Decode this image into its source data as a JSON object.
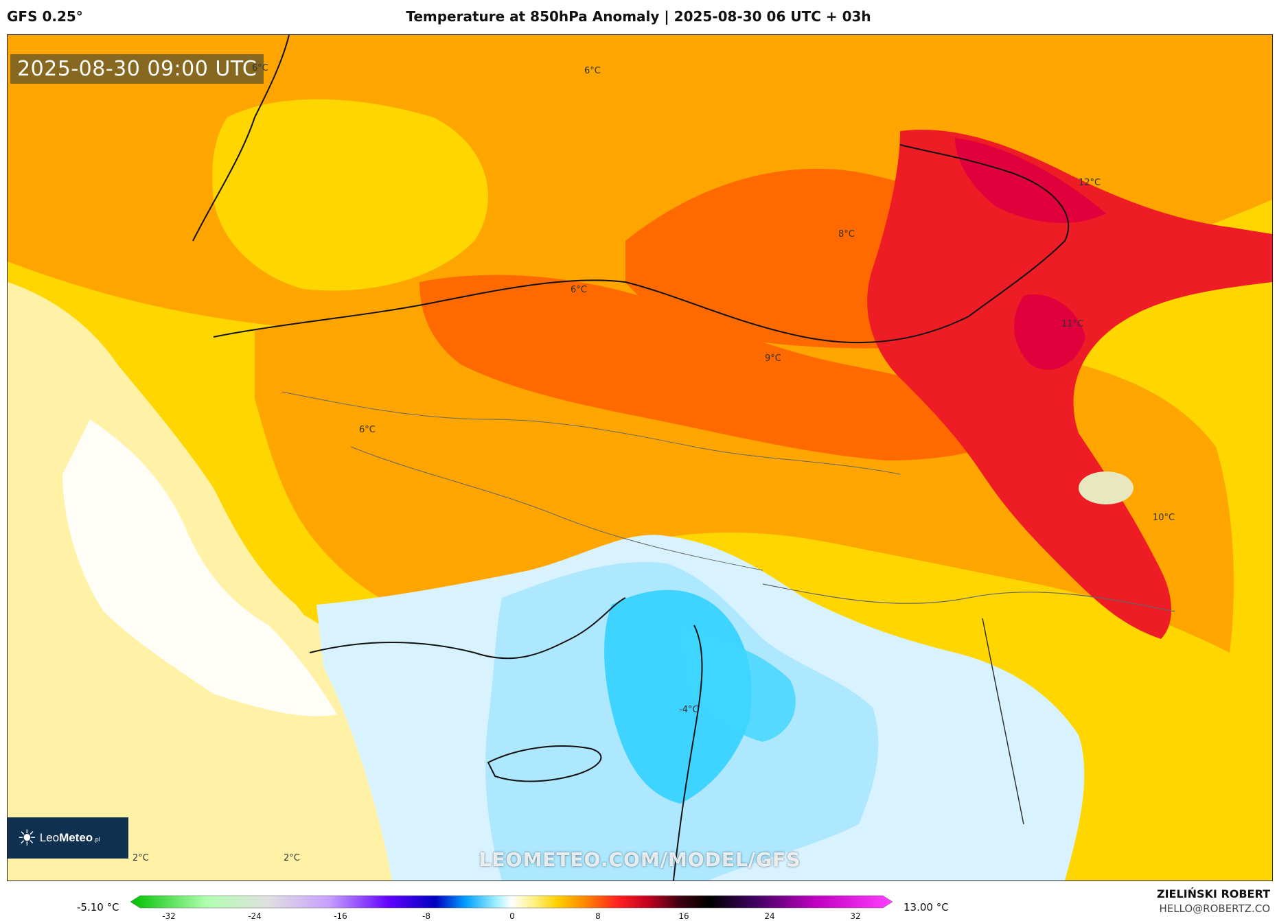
{
  "header": {
    "model": "GFS 0.25°",
    "title": "Temperature at 850hPa Anomaly | 2025-08-30 06 UTC + 03h"
  },
  "map": {
    "valid_time": "2025-08-30 09:00 UTC",
    "watermark": "LEOMETEO.COM/MODEL/GFS",
    "logo": {
      "text_light": "Leo",
      "text_bold": "Meteo",
      "suffix": ".pl"
    },
    "contour_labels": [
      {
        "id": "l1",
        "text": "6°C"
      },
      {
        "id": "l2",
        "text": "6°C"
      },
      {
        "id": "l3",
        "text": "12°C"
      },
      {
        "id": "l4",
        "text": "8°C"
      },
      {
        "id": "l5",
        "text": "6°C"
      },
      {
        "id": "l6",
        "text": "11°C"
      },
      {
        "id": "l7",
        "text": "9°C"
      },
      {
        "id": "l8",
        "text": "6°C"
      },
      {
        "id": "l9",
        "text": "10°C"
      },
      {
        "id": "l10",
        "text": "-4°C"
      },
      {
        "id": "l11",
        "text": "2°C"
      },
      {
        "id": "l12",
        "text": "2°C"
      }
    ]
  },
  "colorbar": {
    "min_label": "-5.10 °C",
    "max_label": "13.00 °C",
    "ticks": [
      "-32",
      "-24",
      "-16",
      "-8",
      "0",
      "8",
      "16",
      "24",
      "32"
    ]
  },
  "credits": {
    "author": "ZIELIŃSKI ROBERT",
    "email": "HELLO@ROBERTZ.CO"
  },
  "colors": {
    "pale_yellow": "#fff2a6",
    "yellow": "#ffd600",
    "orange": "#ffa500",
    "dark_orange": "#ff6a00",
    "red": "#ee1c24",
    "crimson": "#e0003c",
    "light_blue": "#aee8ff",
    "blue": "#3fd4ff"
  }
}
